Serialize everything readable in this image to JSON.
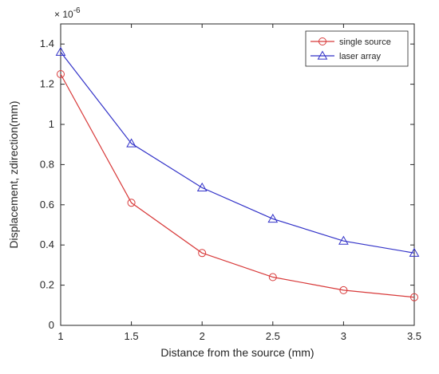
{
  "chart_data": {
    "type": "line",
    "title": "",
    "xlabel": "Distance from the source (mm)",
    "ylabel": "Displacement, zdirection(mm)",
    "y_multiplier_label": "× 10",
    "y_multiplier_exponent": "-6",
    "x": [
      1,
      1.5,
      2,
      2.5,
      3,
      3.5
    ],
    "xlim": [
      1,
      3.5
    ],
    "ylim": [
      0,
      1.5
    ],
    "x_ticks": [
      "1",
      "1.5",
      "2",
      "2.5",
      "3",
      "3.5"
    ],
    "y_ticks": [
      "0",
      "0.2",
      "0.4",
      "0.6",
      "0.8",
      "1",
      "1.2",
      "1.4"
    ],
    "grid": false,
    "legend_position": "top-right",
    "series": [
      {
        "name": "single source",
        "color": "#d83a3a",
        "marker": "circle",
        "values": [
          1.25,
          0.61,
          0.36,
          0.24,
          0.175,
          0.14
        ]
      },
      {
        "name": "laser array",
        "color": "#3232c8",
        "marker": "triangle",
        "values": [
          1.36,
          0.905,
          0.685,
          0.53,
          0.42,
          0.36
        ]
      }
    ]
  }
}
